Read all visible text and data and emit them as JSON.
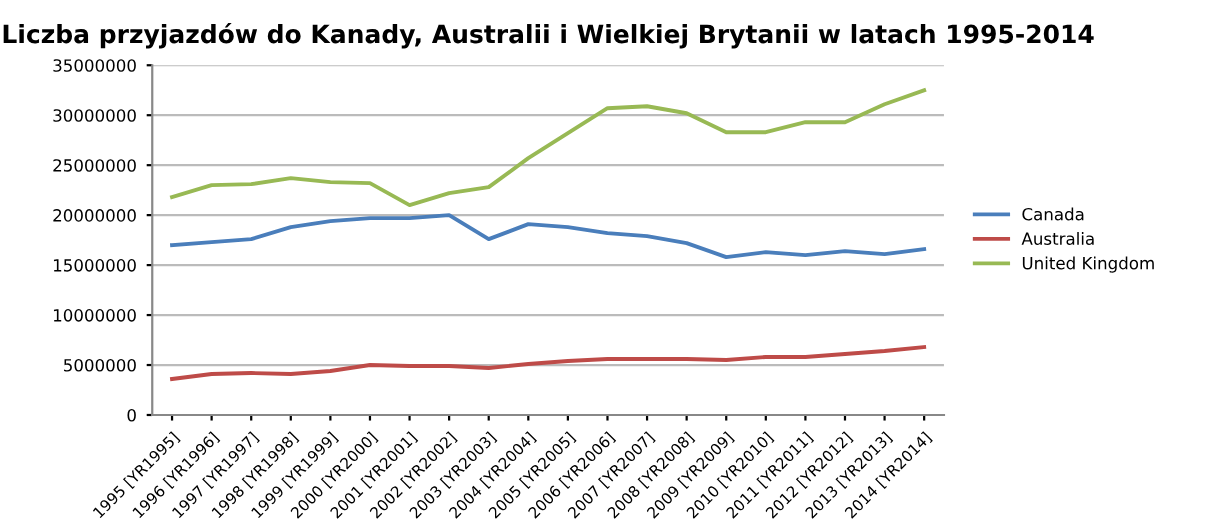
{
  "chart_data": {
    "type": "line",
    "title": "Liczba przyjazdów do Kanady, Australii i Wielkiej Brytanii w latach 1995-2014",
    "categories": [
      "1995 [YR1995]",
      "1996 [YR1996]",
      "1997 [YR1997]",
      "1998 [YR1998]",
      "1999 [YR1999]",
      "2000 [YR2000]",
      "2001 [YR2001]",
      "2002 [YR2002]",
      "2003 [YR2003]",
      "2004 [YR2004]",
      "2005 [YR2005]",
      "2006 [YR2006]",
      "2007 [YR2007]",
      "2008 [YR2008]",
      "2009 [YR2009]",
      "2010 [YR2010]",
      "2011 [YR2011]",
      "2012 [YR2012]",
      "2013 [YR2013]",
      "2014 [YR2014]"
    ],
    "series": [
      {
        "name": "Canada",
        "color": "#4a7ebb",
        "values": [
          17000000,
          17300000,
          17600000,
          18800000,
          19400000,
          19700000,
          19700000,
          20000000,
          17600000,
          19100000,
          18800000,
          18200000,
          17900000,
          17200000,
          15800000,
          16300000,
          16000000,
          16400000,
          16100000,
          16600000
        ]
      },
      {
        "name": "Australia",
        "color": "#be4b48",
        "values": [
          3600000,
          4100000,
          4200000,
          4100000,
          4400000,
          5000000,
          4900000,
          4900000,
          4700000,
          5100000,
          5400000,
          5600000,
          5600000,
          5600000,
          5500000,
          5800000,
          5800000,
          6100000,
          6400000,
          6800000
        ]
      },
      {
        "name": "United Kingdom",
        "color": "#98b954",
        "values": [
          21800000,
          23000000,
          23100000,
          23700000,
          23300000,
          23200000,
          21000000,
          22200000,
          22800000,
          25700000,
          28200000,
          30700000,
          30900000,
          30200000,
          28300000,
          28300000,
          29300000,
          29300000,
          31100000,
          32500000
        ]
      }
    ],
    "ylim": [
      0,
      35000000
    ],
    "yticks": [
      0,
      5000000,
      10000000,
      15000000,
      20000000,
      25000000,
      30000000,
      35000000
    ],
    "grid": "y",
    "legend": "right",
    "marker": "none",
    "line_style": "solid"
  }
}
